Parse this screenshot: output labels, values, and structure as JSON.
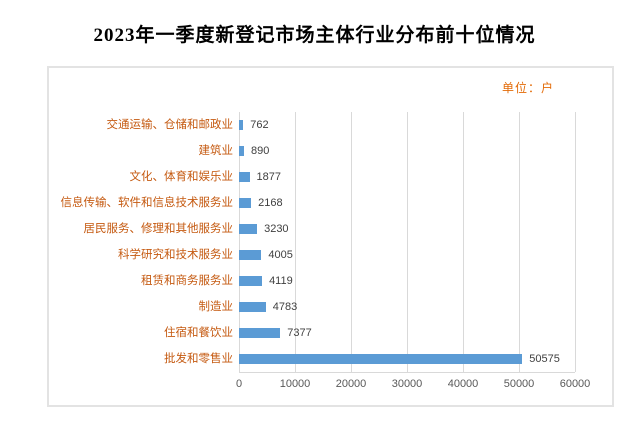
{
  "title": "2023年一季度新登记市场主体行业分布前十位情况",
  "chart": {
    "unit_label": "单位：户",
    "colors": {
      "bar": "#5B9BD5",
      "category_label": "#C55A11",
      "unit_label": "#E36C09",
      "value_label": "#404040",
      "axis_label": "#595959",
      "gridline": "#D9D9D9",
      "box_border": "#E3E3E3",
      "title": "#000000"
    }
  },
  "chart_data": {
    "type": "bar",
    "orientation": "horizontal",
    "title": "2023年一季度新登记市场主体行业分布前十位情况",
    "unit": "单位：户",
    "categories": [
      "交通运输、仓储和邮政业",
      "建筑业",
      "文化、体育和娱乐业",
      "信息传输、软件和信息技术服务业",
      "居民服务、修理和其他服务业",
      "科学研究和技术服务业",
      "租赁和商务服务业",
      "制造业",
      "住宿和餐饮业",
      "批发和零售业"
    ],
    "values": [
      762,
      890,
      1877,
      2168,
      3230,
      4005,
      4119,
      4783,
      7377,
      50575
    ],
    "xlabel": "",
    "ylabel": "",
    "xlim": [
      0,
      60000
    ],
    "xticks": [
      0,
      10000,
      20000,
      30000,
      40000,
      50000,
      60000
    ],
    "grid": true,
    "legend": false
  }
}
